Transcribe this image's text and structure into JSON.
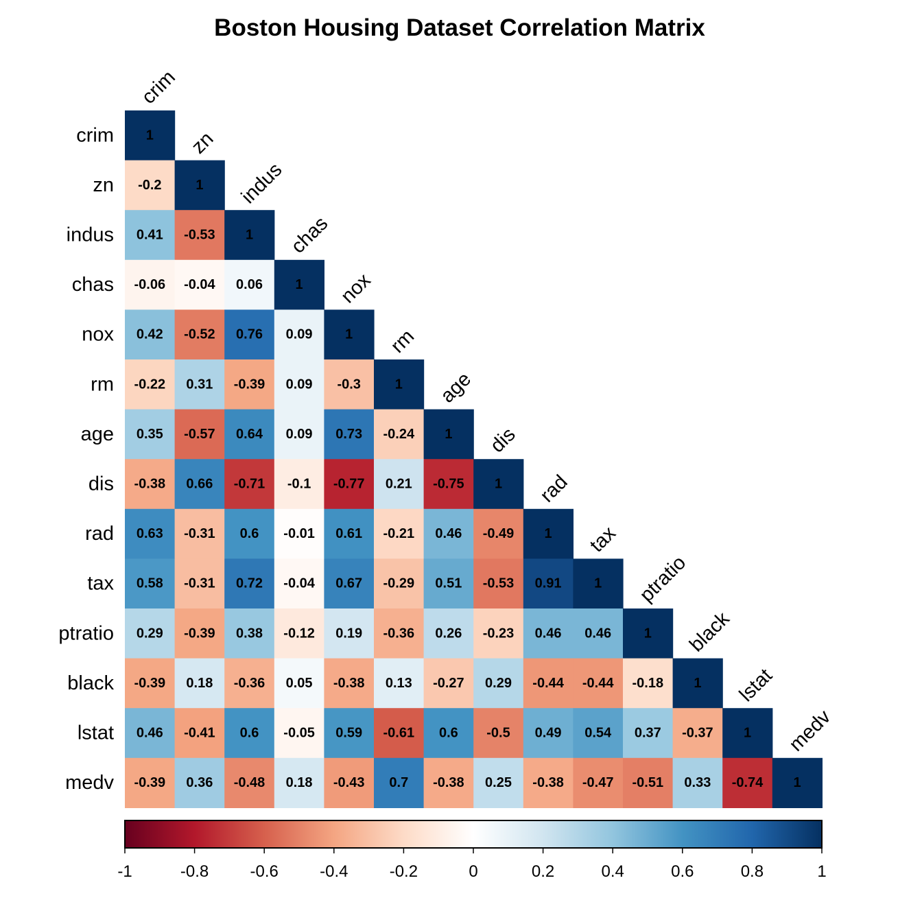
{
  "chart_data": {
    "type": "heatmap",
    "title": "Boston Housing Dataset Correlation Matrix",
    "variables": [
      "crim",
      "zn",
      "indus",
      "chas",
      "nox",
      "rm",
      "age",
      "dis",
      "rad",
      "tax",
      "ptratio",
      "black",
      "lstat",
      "medv"
    ],
    "shape": "lower-triangle",
    "values": [
      [
        1
      ],
      [
        -0.2,
        1
      ],
      [
        0.41,
        -0.53,
        1
      ],
      [
        -0.06,
        -0.04,
        0.06,
        1
      ],
      [
        0.42,
        -0.52,
        0.76,
        0.09,
        1
      ],
      [
        -0.22,
        0.31,
        -0.39,
        0.09,
        -0.3,
        1
      ],
      [
        0.35,
        -0.57,
        0.64,
        0.09,
        0.73,
        -0.24,
        1
      ],
      [
        -0.38,
        0.66,
        -0.71,
        -0.1,
        -0.77,
        0.21,
        -0.75,
        1
      ],
      [
        0.63,
        -0.31,
        0.6,
        -0.01,
        0.61,
        -0.21,
        0.46,
        -0.49,
        1
      ],
      [
        0.58,
        -0.31,
        0.72,
        -0.04,
        0.67,
        -0.29,
        0.51,
        -0.53,
        0.91,
        1
      ],
      [
        0.29,
        -0.39,
        0.38,
        -0.12,
        0.19,
        -0.36,
        0.26,
        -0.23,
        0.46,
        0.46,
        1
      ],
      [
        -0.39,
        0.18,
        -0.36,
        0.05,
        -0.38,
        0.13,
        -0.27,
        0.29,
        -0.44,
        -0.44,
        -0.18,
        1
      ],
      [
        0.46,
        -0.41,
        0.6,
        -0.05,
        0.59,
        -0.61,
        0.6,
        -0.5,
        0.49,
        0.54,
        0.37,
        -0.37,
        1
      ],
      [
        -0.39,
        0.36,
        -0.48,
        0.18,
        -0.43,
        0.7,
        -0.38,
        0.25,
        -0.38,
        -0.47,
        -0.51,
        0.33,
        -0.74,
        1
      ]
    ],
    "colorbar": {
      "range": [
        -1,
        1
      ],
      "ticks": [
        -1,
        -0.8,
        -0.6,
        -0.4,
        -0.2,
        0,
        0.2,
        0.4,
        0.6,
        0.8,
        1
      ],
      "colorscale": [
        "#67001F",
        "#B2182B",
        "#D6604D",
        "#F4A582",
        "#FDDBC7",
        "#FFFFFF",
        "#D1E5F0",
        "#92C5DE",
        "#4393C3",
        "#2166AC",
        "#053061"
      ]
    },
    "grid": false,
    "legend": "bottom colorbar"
  }
}
